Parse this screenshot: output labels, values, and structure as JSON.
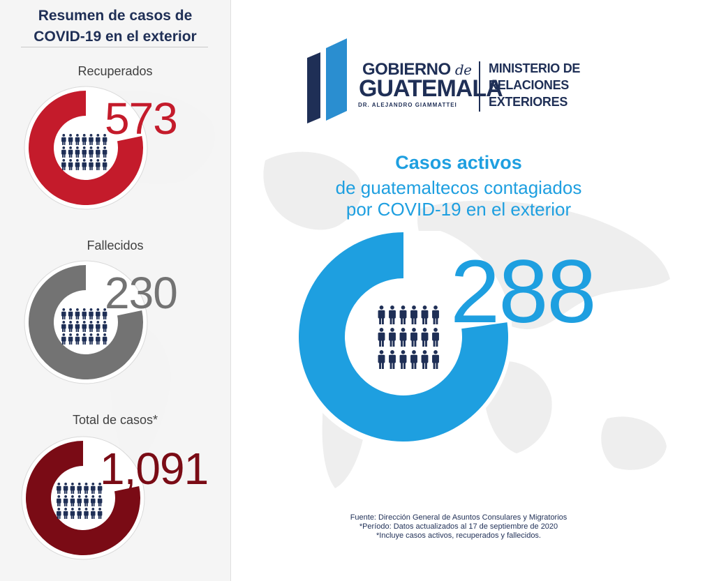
{
  "sidebar": {
    "title_line1": "Resumen de casos de",
    "title_line2": "COVID-19 en el exterior",
    "stats": [
      {
        "label": "Recuperados",
        "value": "573",
        "color": "#c41b2b"
      },
      {
        "label": "Fallecidos",
        "value": "230",
        "color": "#737373"
      },
      {
        "label": "Total de casos*",
        "value": "1,091",
        "color": "#7a0b15"
      }
    ]
  },
  "logo": {
    "gobierno": "GOBIERNO",
    "de": "de",
    "guatemala": "GUATEMALA",
    "president": "DR. ALEJANDRO GIAMMATTEI",
    "colors": {
      "navy": "#1f2f56",
      "blue": "#2a8ed0"
    }
  },
  "ministry": {
    "line1": "MINISTERIO DE",
    "line2": "RELACIONES",
    "line3": "EXTERIORES"
  },
  "active": {
    "heading": "Casos activos",
    "subtitle_line1": "de guatemaltecos contagiados",
    "subtitle_line2": "por COVID-19 en el exterior",
    "value": "288",
    "color": "#1e9fe0"
  },
  "footnote": {
    "source": "Fuente: Dirección General de Asuntos Consulares y Migratorios",
    "period": "*Período: Datos actualizados al 17 de septiembre de 2020",
    "includes": "*Incluye casos activos, recuperados y fallecidos."
  },
  "icons": [
    "people-group-icon",
    "ring-icon",
    "government-logo-icon"
  ]
}
